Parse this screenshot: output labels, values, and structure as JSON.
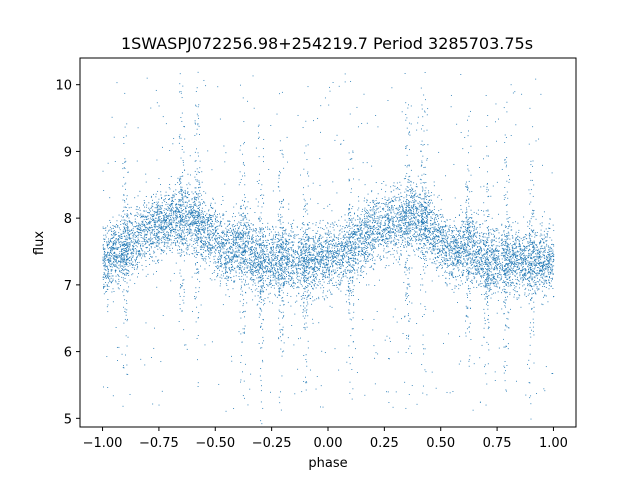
{
  "chart_data": {
    "type": "scatter",
    "title": "1SWASPJ072256.98+254219.7 Period 3285703.75s",
    "xlabel": "phase",
    "ylabel": "flux",
    "xlim": [
      -1.1,
      1.1
    ],
    "ylim": [
      4.87,
      10.4
    ],
    "xticks": [
      -1.0,
      -0.75,
      -0.5,
      -0.25,
      0.0,
      0.25,
      0.5,
      0.75,
      1.0
    ],
    "xtick_labels": [
      "−1.00",
      "−0.75",
      "−0.50",
      "−0.25",
      "0.00",
      "0.25",
      "0.50",
      "0.75",
      "1.00"
    ],
    "yticks": [
      5,
      6,
      7,
      8,
      9,
      10
    ],
    "ytick_labels": [
      "5",
      "6",
      "7",
      "8",
      "9",
      "10"
    ],
    "grid": false,
    "legend": "none",
    "marker_color": "#1f77b4",
    "x_range": [
      -1.0,
      1.0
    ],
    "baseline_flux": 7.45,
    "typical_scatter": 0.25,
    "outlier_range": [
      5.1,
      10.2
    ],
    "trend": [
      {
        "phase": -1.0,
        "flux": 7.4
      },
      {
        "phase": -0.9,
        "flux": 7.55
      },
      {
        "phase": -0.8,
        "flux": 7.85
      },
      {
        "phase": -0.7,
        "flux": 7.95
      },
      {
        "phase": -0.62,
        "flux": 8.05
      },
      {
        "phase": -0.55,
        "flux": 7.85
      },
      {
        "phase": -0.45,
        "flux": 7.5
      },
      {
        "phase": -0.38,
        "flux": 7.6
      },
      {
        "phase": -0.3,
        "flux": 7.35
      },
      {
        "phase": -0.2,
        "flux": 7.4
      },
      {
        "phase": -0.1,
        "flux": 7.35
      },
      {
        "phase": 0.0,
        "flux": 7.4
      },
      {
        "phase": 0.1,
        "flux": 7.55
      },
      {
        "phase": 0.2,
        "flux": 7.85
      },
      {
        "phase": 0.3,
        "flux": 7.95
      },
      {
        "phase": 0.38,
        "flux": 8.05
      },
      {
        "phase": 0.45,
        "flux": 7.85
      },
      {
        "phase": 0.55,
        "flux": 7.5
      },
      {
        "phase": 0.62,
        "flux": 7.6
      },
      {
        "phase": 0.7,
        "flux": 7.35
      },
      {
        "phase": 0.8,
        "flux": 7.4
      },
      {
        "phase": 0.9,
        "flux": 7.35
      },
      {
        "phase": 1.0,
        "flux": 7.4
      }
    ],
    "vertical_streaks": [
      -0.9,
      -0.65,
      -0.58,
      -0.38,
      -0.3,
      -0.21,
      -0.1,
      0.1,
      0.35,
      0.42,
      0.62,
      0.7,
      0.79,
      0.9
    ]
  }
}
